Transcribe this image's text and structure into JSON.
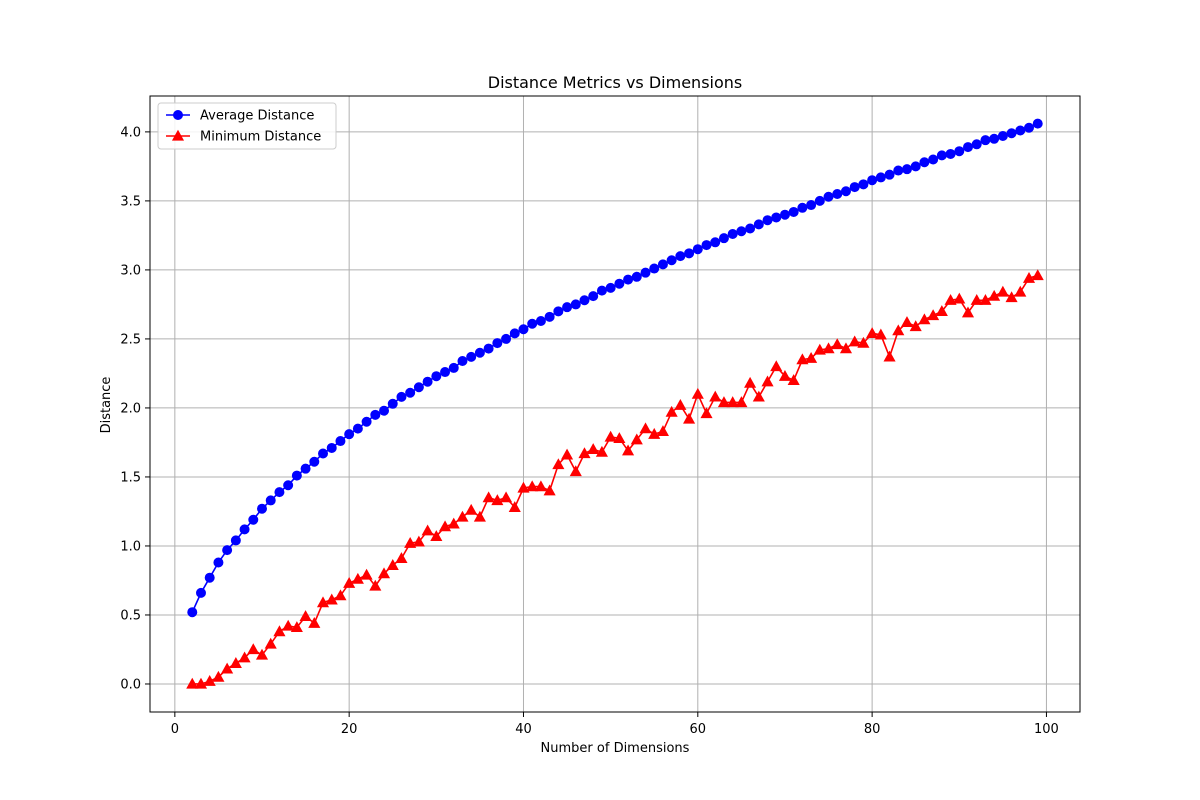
{
  "chart_data": {
    "type": "line",
    "title": "Distance Metrics vs Dimensions",
    "xlabel": "Number of Dimensions",
    "ylabel": "Distance",
    "xlim": [
      -2.85,
      103.85
    ],
    "ylim": [
      -0.203,
      4.26
    ],
    "xticks": [
      0,
      20,
      40,
      60,
      80,
      100
    ],
    "yticks": [
      0.0,
      0.5,
      1.0,
      1.5,
      2.0,
      2.5,
      3.0,
      3.5,
      4.0
    ],
    "xtick_labels": [
      "0",
      "20",
      "40",
      "60",
      "80",
      "100"
    ],
    "ytick_labels": [
      "0.0",
      "0.5",
      "1.0",
      "1.5",
      "2.0",
      "2.5",
      "3.0",
      "3.5",
      "4.0"
    ],
    "grid": true,
    "legend_position": "top-left",
    "x": [
      2,
      3,
      4,
      5,
      6,
      7,
      8,
      9,
      10,
      11,
      12,
      13,
      14,
      15,
      16,
      17,
      18,
      19,
      20,
      21,
      22,
      23,
      24,
      25,
      26,
      27,
      28,
      29,
      30,
      31,
      32,
      33,
      34,
      35,
      36,
      37,
      38,
      39,
      40,
      41,
      42,
      43,
      44,
      45,
      46,
      47,
      48,
      49,
      50,
      51,
      52,
      53,
      54,
      55,
      56,
      57,
      58,
      59,
      60,
      61,
      62,
      63,
      64,
      65,
      66,
      67,
      68,
      69,
      70,
      71,
      72,
      73,
      74,
      75,
      76,
      77,
      78,
      79,
      80,
      81,
      82,
      83,
      84,
      85,
      86,
      87,
      88,
      89,
      90,
      91,
      92,
      93,
      94,
      95,
      96,
      97,
      98,
      99
    ],
    "series": [
      {
        "name": "Average Distance",
        "color": "#0000ff",
        "marker": "circle",
        "values": [
          0.52,
          0.66,
          0.77,
          0.88,
          0.97,
          1.04,
          1.12,
          1.19,
          1.27,
          1.33,
          1.39,
          1.44,
          1.51,
          1.56,
          1.61,
          1.67,
          1.71,
          1.76,
          1.81,
          1.85,
          1.9,
          1.95,
          1.98,
          2.03,
          2.08,
          2.11,
          2.15,
          2.19,
          2.23,
          2.26,
          2.29,
          2.34,
          2.37,
          2.4,
          2.43,
          2.47,
          2.5,
          2.54,
          2.57,
          2.61,
          2.63,
          2.66,
          2.7,
          2.73,
          2.75,
          2.78,
          2.81,
          2.85,
          2.87,
          2.9,
          2.93,
          2.95,
          2.98,
          3.01,
          3.04,
          3.07,
          3.1,
          3.12,
          3.15,
          3.18,
          3.2,
          3.23,
          3.26,
          3.28,
          3.3,
          3.33,
          3.36,
          3.38,
          3.4,
          3.42,
          3.45,
          3.47,
          3.5,
          3.53,
          3.55,
          3.57,
          3.6,
          3.62,
          3.65,
          3.67,
          3.69,
          3.72,
          3.73,
          3.75,
          3.78,
          3.8,
          3.83,
          3.84,
          3.86,
          3.89,
          3.91,
          3.94,
          3.95,
          3.97,
          3.99,
          4.01,
          4.03,
          4.06
        ]
      },
      {
        "name": "Minimum Distance",
        "color": "#ff0000",
        "marker": "triangle",
        "values": [
          0.0,
          0.0,
          0.02,
          0.05,
          0.11,
          0.15,
          0.19,
          0.25,
          0.21,
          0.29,
          0.38,
          0.42,
          0.41,
          0.49,
          0.44,
          0.59,
          0.61,
          0.64,
          0.73,
          0.76,
          0.79,
          0.71,
          0.8,
          0.86,
          0.91,
          1.02,
          1.03,
          1.11,
          1.07,
          1.14,
          1.16,
          1.21,
          1.26,
          1.21,
          1.35,
          1.33,
          1.35,
          1.28,
          1.42,
          1.43,
          1.43,
          1.4,
          1.59,
          1.66,
          1.54,
          1.67,
          1.7,
          1.68,
          1.79,
          1.78,
          1.69,
          1.77,
          1.85,
          1.81,
          1.83,
          1.97,
          2.02,
          1.92,
          2.1,
          1.96,
          2.08,
          2.04,
          2.04,
          2.04,
          2.18,
          2.08,
          2.19,
          2.3,
          2.23,
          2.2,
          2.35,
          2.36,
          2.42,
          2.43,
          2.46,
          2.43,
          2.48,
          2.47,
          2.54,
          2.53,
          2.37,
          2.56,
          2.62,
          2.59,
          2.64,
          2.67,
          2.7,
          2.78,
          2.79,
          2.69,
          2.78,
          2.78,
          2.81,
          2.84,
          2.8,
          2.84,
          2.94,
          2.96
        ]
      }
    ]
  }
}
